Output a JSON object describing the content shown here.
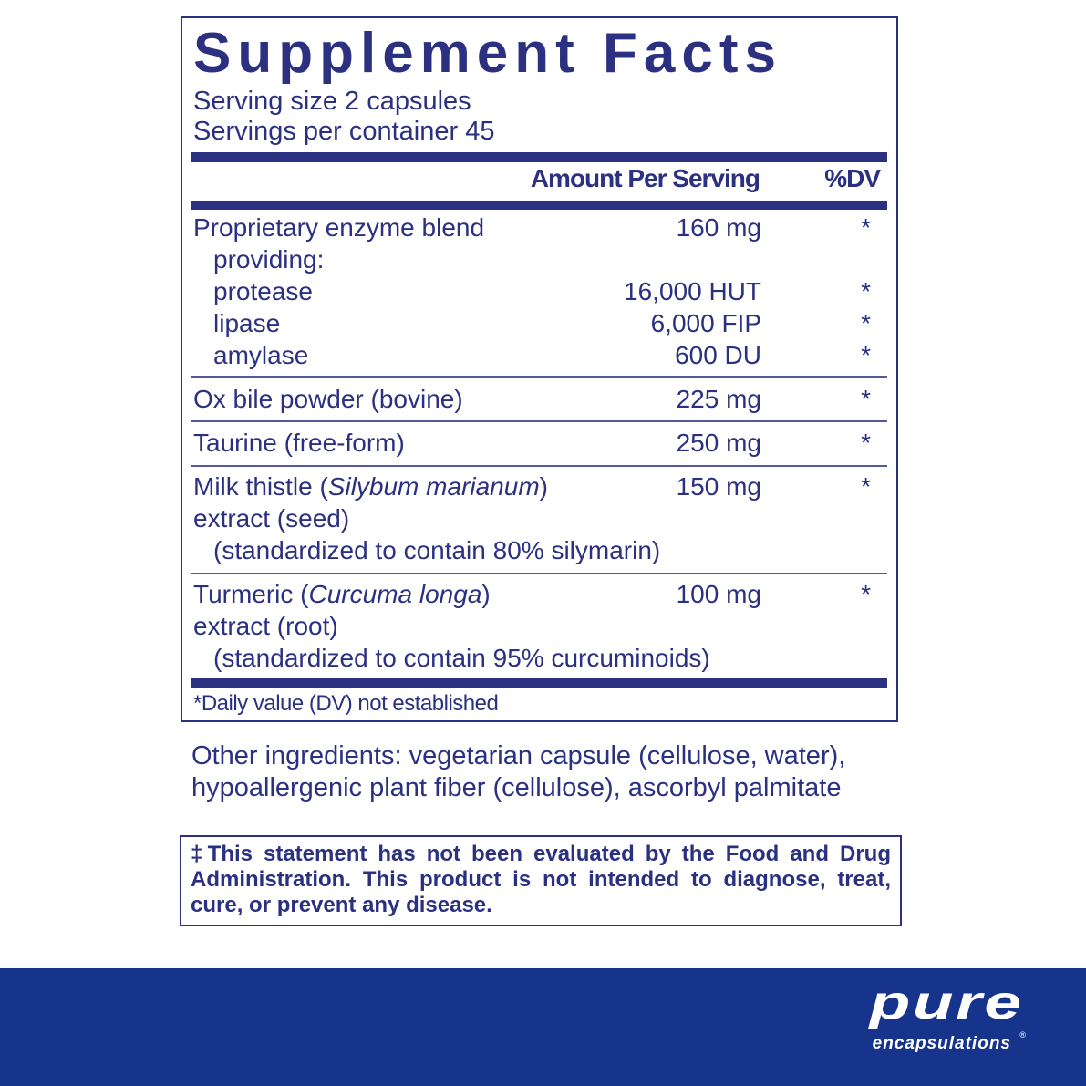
{
  "title": "Supplement Facts",
  "serving_size": "Serving size  2 capsules",
  "servings_per_container": "Servings per container  45",
  "header": {
    "amount": "Amount Per Serving",
    "dv": "%DV"
  },
  "rows": [
    {
      "name": "Proprietary enzyme blend",
      "amount": "160 mg",
      "dv": "*"
    },
    {
      "name": "providing:",
      "amount": "",
      "dv": ""
    },
    {
      "name": "protease",
      "amount": "16,000 HUT",
      "dv": "*"
    },
    {
      "name": "lipase",
      "amount": "6,000 FIP",
      "dv": "*"
    },
    {
      "name": "amylase",
      "amount": "600 DU",
      "dv": "*"
    },
    {
      "name": "Ox bile powder (bovine)",
      "amount": "225 mg",
      "dv": "*"
    },
    {
      "name": "Taurine (free-form)",
      "amount": "250 mg",
      "dv": "*"
    },
    {
      "name_pre": "Milk thistle (",
      "name_it": "Silybum marianum",
      "name_post": ")",
      "amount": "150 mg",
      "dv": "*",
      "line2": "extract (seed)",
      "line3": "(standardized to contain 80% silymarin)"
    },
    {
      "name_pre": "Turmeric (",
      "name_it": "Curcuma longa",
      "name_post": ")",
      "amount": "100 mg",
      "dv": "*",
      "line2": "extract (root)",
      "line3": "(standardized to contain 95% curcuminoids)"
    }
  ],
  "footnote": "*Daily value (DV) not established",
  "other_ingredients": [
    "Other ingredients: vegetarian capsule (cellulose, water),",
    "hypoallergenic plant fiber (cellulose), ascorbyl palmitate"
  ],
  "disclaimer": "‡This statement has not been evaluated by the Food and Drug Administration. This product is not intended to diagnose, treat, cure, or prevent any disease.",
  "brand": {
    "line1": "pure",
    "line2": "encapsulations",
    "reg": "®",
    "color": "#17348c"
  }
}
